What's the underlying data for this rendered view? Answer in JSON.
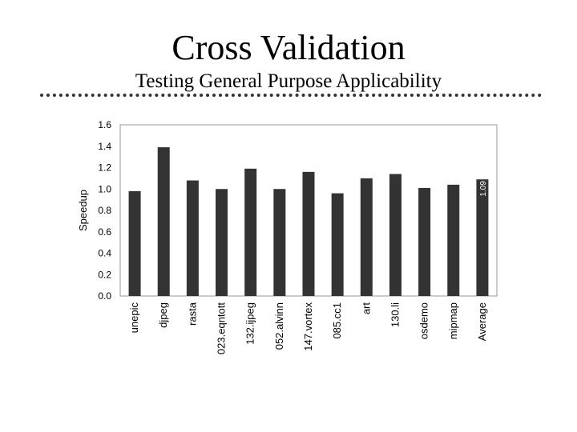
{
  "slide": {
    "title": "Cross Validation",
    "subtitle": "Testing General Purpose Applicability"
  },
  "chart_data": {
    "type": "bar",
    "ylabel": "Speedup",
    "ylim": [
      0,
      1.6
    ],
    "yticks": [
      "0.0",
      "0.2",
      "0.4",
      "0.6",
      "0.8",
      "1.0",
      "1.2",
      "1.4",
      "1.6"
    ],
    "categories": [
      "unepic",
      "djpeg",
      "rasta",
      "023.eqntott",
      "132.ijpeg",
      "052.alvinn",
      "147.vortex",
      "085.cc1",
      "art",
      "130.li",
      "osdemo",
      "mipmap",
      "Average"
    ],
    "values": [
      0.98,
      1.39,
      1.08,
      1.0,
      1.19,
      1.0,
      1.16,
      0.96,
      1.1,
      1.14,
      1.01,
      1.04,
      1.09
    ],
    "data_labels": [
      {
        "category": "Average",
        "text": "1.09"
      }
    ],
    "bar_color": "#333333",
    "grid": false,
    "legend": "none"
  }
}
